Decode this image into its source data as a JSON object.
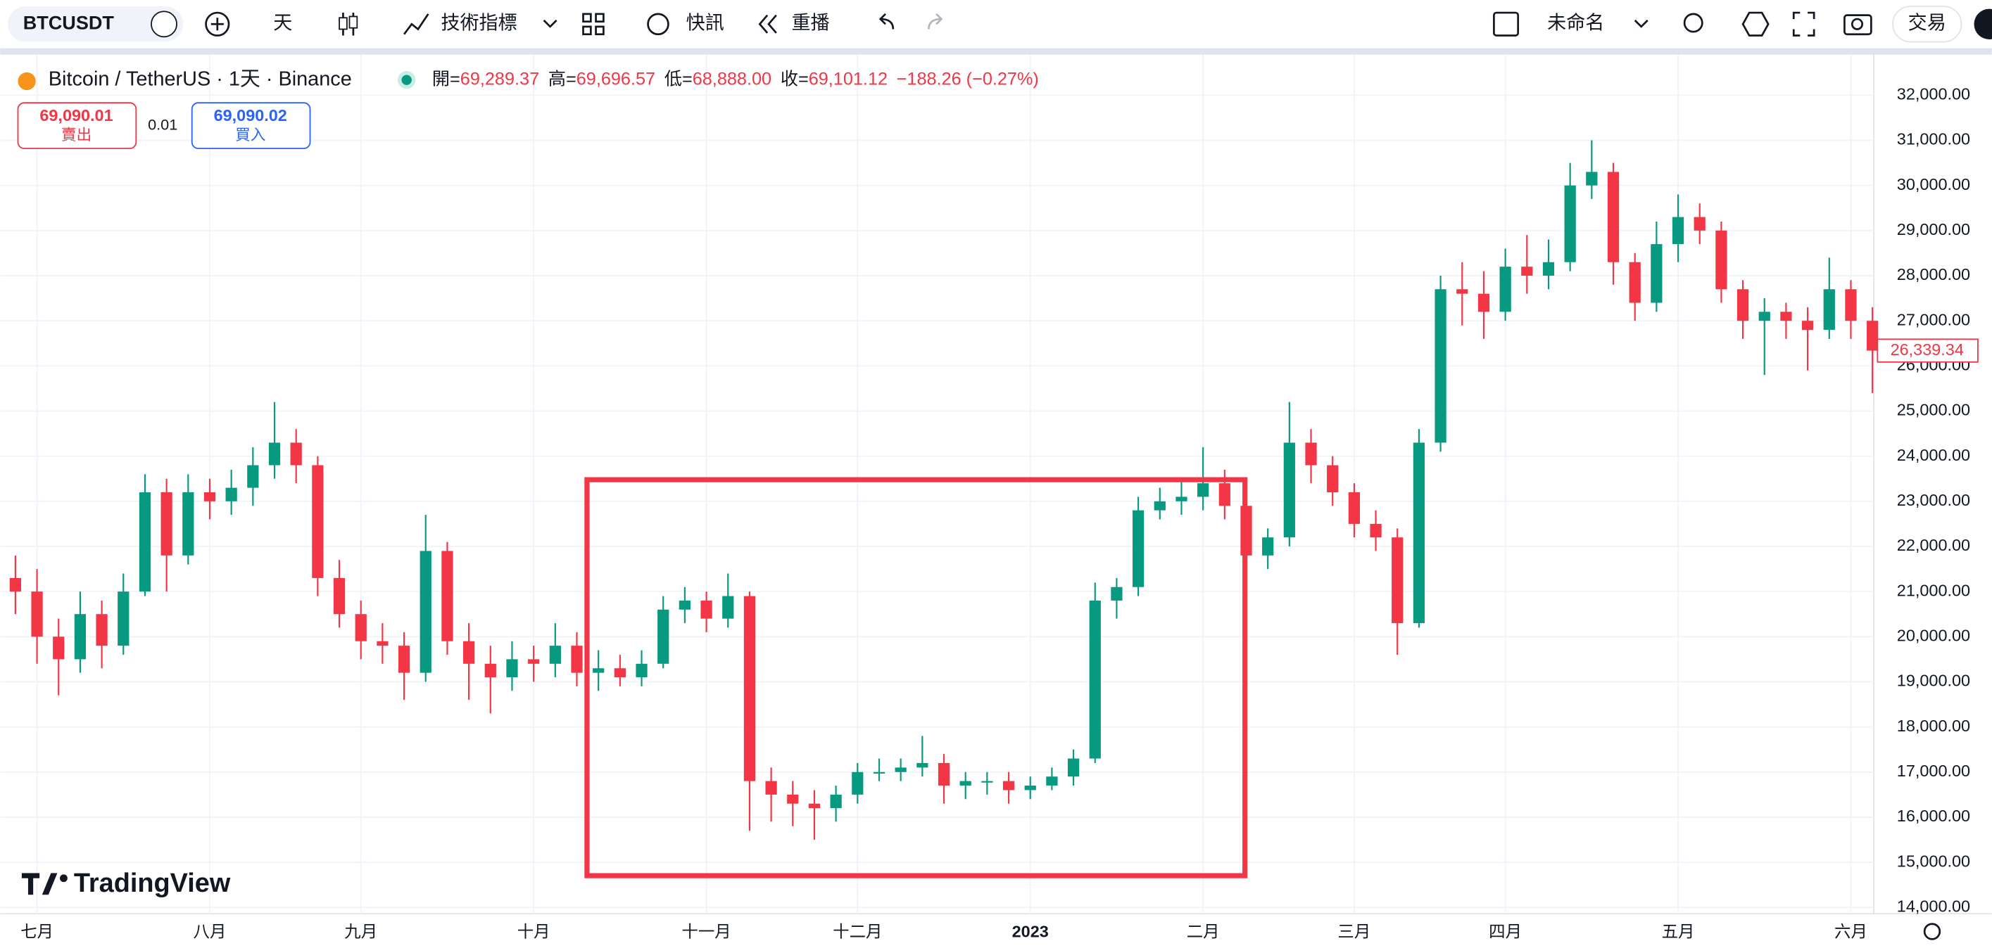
{
  "toolbar": {
    "symbol": "BTCUSDT",
    "interval": "天",
    "indicators": "技術指標",
    "alerts": "快訊",
    "replay": "重播",
    "layout_name": "未命名",
    "trade": "交易"
  },
  "legend": {
    "title": "Bitcoin / TetherUS · 1天 · Binance",
    "open_label": "開=",
    "open": "69,289.37",
    "high_label": "高=",
    "high": "69,696.57",
    "low_label": "低=",
    "low": "68,888.00",
    "close_label": "收=",
    "close": "69,101.12",
    "change": "−188.26 (−0.27%)"
  },
  "order": {
    "sell_price": "69,090.01",
    "sell": "賣出",
    "spread": "0.01",
    "buy_price": "69,090.02",
    "buy": "買入"
  },
  "watermark": "TradingView",
  "chart_data": {
    "type": "candlestick",
    "categories": [
      null,
      "七月",
      null,
      null,
      null,
      null,
      null,
      null,
      null,
      "八月",
      null,
      null,
      null,
      null,
      null,
      null,
      "九月",
      null,
      null,
      null,
      null,
      null,
      null,
      null,
      "十月",
      null,
      null,
      null,
      null,
      null,
      null,
      null,
      "十一月",
      null,
      null,
      null,
      null,
      null,
      null,
      "十二月",
      null,
      null,
      null,
      null,
      null,
      null,
      null,
      "2023",
      null,
      null,
      null,
      null,
      null,
      null,
      null,
      "二月",
      null,
      null,
      null,
      null,
      null,
      null,
      "三月",
      null,
      null,
      null,
      null,
      null,
      null,
      "四月",
      null,
      null,
      null,
      null,
      null,
      null,
      null,
      "五月",
      null,
      null,
      null,
      null,
      null,
      null,
      null,
      "六月",
      null
    ],
    "open": [
      21300,
      21000,
      20000,
      19500,
      20500,
      19800,
      21000,
      23200,
      21800,
      23200,
      23000,
      23300,
      23800,
      24300,
      23800,
      21300,
      20500,
      19900,
      19800,
      19200,
      21900,
      19900,
      19400,
      19100,
      19500,
      19400,
      19800,
      19200,
      19300,
      19100,
      19400,
      20600,
      20800,
      20400,
      20900,
      16800,
      16500,
      16300,
      16200,
      16500,
      17000,
      17000,
      17100,
      17200,
      16700,
      16800,
      16800,
      16600,
      16700,
      16900,
      17300,
      20800,
      21100,
      22800,
      23000,
      23100,
      23400,
      22900,
      21800,
      22200,
      24300,
      23800,
      23200,
      22500,
      22200,
      20300,
      24300,
      27700,
      27600,
      27200,
      28200,
      28000,
      28300,
      30000,
      30300,
      28300,
      27400,
      28700,
      29300,
      29000,
      27700,
      27000,
      27200,
      27000,
      26800,
      27700,
      27000
    ],
    "high": [
      21800,
      21500,
      20400,
      21000,
      20800,
      21400,
      23600,
      23500,
      23600,
      23500,
      23700,
      24200,
      25200,
      24600,
      24000,
      21700,
      20800,
      20300,
      20100,
      22700,
      22100,
      20300,
      19800,
      19900,
      19800,
      20300,
      20100,
      19700,
      19600,
      19700,
      20900,
      21100,
      21000,
      21400,
      21000,
      17100,
      16800,
      16600,
      16700,
      17200,
      17300,
      17300,
      17800,
      17400,
      17000,
      17000,
      17000,
      16900,
      17100,
      17500,
      21200,
      21300,
      23100,
      23300,
      23500,
      24200,
      23700,
      23000,
      22400,
      25200,
      24600,
      24000,
      23400,
      22800,
      22400,
      24600,
      28000,
      28300,
      28100,
      28600,
      28900,
      28800,
      30500,
      31000,
      30500,
      28500,
      29200,
      29800,
      29600,
      29200,
      27900,
      27500,
      27400,
      27300,
      28400,
      27900,
      27300
    ],
    "low": [
      20500,
      19400,
      18700,
      19200,
      19300,
      19600,
      20900,
      21000,
      21600,
      22600,
      22700,
      22900,
      23500,
      23400,
      20900,
      20200,
      19500,
      19400,
      18600,
      19000,
      19600,
      18600,
      18300,
      18800,
      19000,
      19100,
      18900,
      18800,
      18900,
      18900,
      19300,
      20300,
      20100,
      20200,
      15700,
      15900,
      15800,
      15500,
      15900,
      16300,
      16800,
      16800,
      16900,
      16300,
      16400,
      16500,
      16300,
      16400,
      16600,
      16700,
      17200,
      20400,
      20900,
      22600,
      22700,
      22800,
      22600,
      21600,
      21500,
      22000,
      23400,
      22900,
      22200,
      21900,
      19600,
      20200,
      24100,
      26900,
      26600,
      27000,
      27600,
      27700,
      28100,
      29700,
      27800,
      27000,
      27200,
      28300,
      28700,
      27400,
      26600,
      25800,
      26600,
      25900,
      26600,
      26600,
      25400
    ],
    "close": [
      21000,
      20000,
      19500,
      20500,
      19800,
      21000,
      23200,
      21800,
      23200,
      23000,
      23300,
      23800,
      24300,
      23800,
      21300,
      20500,
      19900,
      19800,
      19200,
      21900,
      19900,
      19400,
      19100,
      19500,
      19400,
      19800,
      19200,
      19300,
      19100,
      19400,
      20600,
      20800,
      20400,
      20900,
      16800,
      16500,
      16300,
      16200,
      16500,
      17000,
      17000,
      17100,
      17200,
      16700,
      16800,
      16800,
      16600,
      16700,
      16900,
      17300,
      20800,
      21100,
      22800,
      23000,
      23100,
      23400,
      22900,
      21800,
      22200,
      24300,
      23800,
      23200,
      22500,
      22200,
      20300,
      24300,
      27700,
      27600,
      27200,
      28200,
      28000,
      28300,
      30000,
      30300,
      28300,
      27400,
      28700,
      29300,
      29000,
      27700,
      27000,
      27200,
      27000,
      26800,
      27700,
      27000,
      26339.34
    ],
    "last_label": "26,339.34",
    "up_color": "#089981",
    "down_color": "#f23645",
    "ylim": [
      13860,
      32844
    ],
    "yticks": [
      {
        "value": 14000,
        "label": "14,000.00"
      },
      {
        "value": 15000,
        "label": "15,000.00"
      },
      {
        "value": 16000,
        "label": "16,000.00"
      },
      {
        "value": 17000,
        "label": "17,000.00"
      },
      {
        "value": 18000,
        "label": "18,000.00"
      },
      {
        "value": 19000,
        "label": "19,000.00"
      },
      {
        "value": 20000,
        "label": "20,000.00"
      },
      {
        "value": 21000,
        "label": "21,000.00"
      },
      {
        "value": 22000,
        "label": "22,000.00"
      },
      {
        "value": 23000,
        "label": "23,000.00"
      },
      {
        "value": 24000,
        "label": "24,000.00"
      },
      {
        "value": 25000,
        "label": "25,000.00"
      },
      {
        "value": 26000,
        "label": "26,000.00"
      },
      {
        "value": 27000,
        "label": "27,000.00"
      },
      {
        "value": 28000,
        "label": "28,000.00"
      },
      {
        "value": 29000,
        "label": "29,000.00"
      },
      {
        "value": 30000,
        "label": "30,000.00"
      },
      {
        "value": 31000,
        "label": "31,000.00"
      },
      {
        "value": 32000,
        "label": "32,000.00"
      }
    ],
    "grid": true
  }
}
